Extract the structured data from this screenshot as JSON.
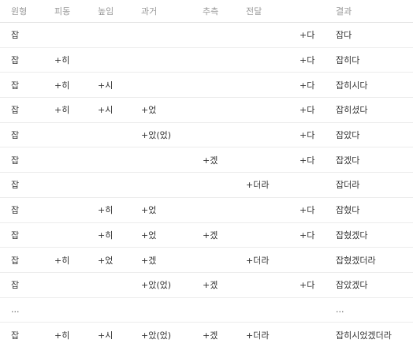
{
  "table": {
    "headers": [
      "원형",
      "피동",
      "높임",
      "과거",
      "추측",
      "전달",
      "",
      "결과"
    ],
    "rows": [
      [
        "잡",
        "",
        "",
        "",
        "",
        "",
        "+다",
        "잡다"
      ],
      [
        "잡",
        "+히",
        "",
        "",
        "",
        "",
        "+다",
        "잡히다"
      ],
      [
        "잡",
        "+히",
        "+시",
        "",
        "",
        "",
        "+다",
        "잡히시다"
      ],
      [
        "잡",
        "+히",
        "+시",
        "+었",
        "",
        "",
        "+다",
        "잡히셨다"
      ],
      [
        "잡",
        "",
        "",
        "+았(었)",
        "",
        "",
        "+다",
        "잡았다"
      ],
      [
        "잡",
        "",
        "",
        "",
        "+겠",
        "",
        "+다",
        "잡겠다"
      ],
      [
        "잡",
        "",
        "",
        "",
        "",
        "+더라",
        "",
        "잡더라"
      ],
      [
        "잡",
        "",
        "+히",
        "+었",
        "",
        "",
        "+다",
        "잡혔다"
      ],
      [
        "잡",
        "",
        "+히",
        "+었",
        "+겠",
        "",
        "+다",
        "잡혔겠다"
      ],
      [
        "잡",
        "+히",
        "+었",
        "+겠",
        "",
        "+더라",
        "",
        "잡혔겠더라"
      ],
      [
        "잡",
        "",
        "",
        "+았(었)",
        "+겠",
        "",
        "+다",
        "잡았겠다"
      ],
      [
        "...",
        "",
        "",
        "",
        "",
        "",
        "",
        "..."
      ],
      [
        "잡",
        "+히",
        "+시",
        "+았(었)",
        "+겠",
        "+더라",
        "",
        "잡히시었겠더라"
      ]
    ]
  }
}
